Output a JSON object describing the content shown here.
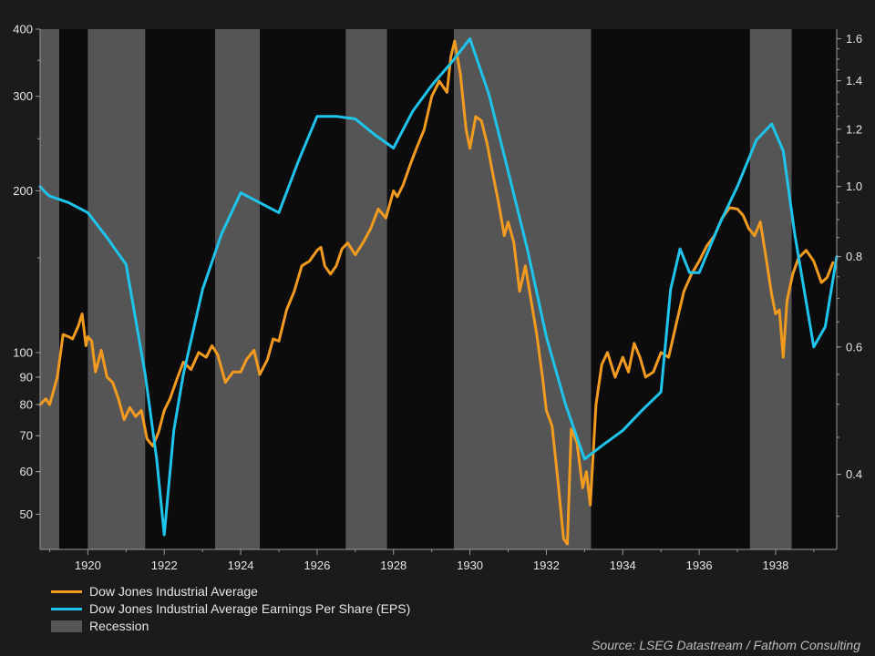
{
  "colors": {
    "background": "#1b1b1b",
    "plot_background": "#0c0c0c",
    "recession": "#555555",
    "djia": "#f39b1e",
    "eps": "#1ec4ec",
    "axis": "#9a9a9a",
    "text": "#e6e6e6"
  },
  "legend": {
    "djia": "Dow Jones Industrial Average",
    "eps": "Dow Jones Industrial Average Earnings Per Share (EPS)",
    "recession": "Recession"
  },
  "source": "Source: LSEG Datastream / Fathom Consulting",
  "chart_data": {
    "type": "line",
    "title": "",
    "xlabel": "",
    "ylabel": "",
    "xlim": [
      1918.75,
      1939.6
    ],
    "x_ticks": [
      1920,
      1922,
      1924,
      1926,
      1928,
      1930,
      1932,
      1934,
      1936,
      1938
    ],
    "y_left": {
      "scale": "log",
      "lim": [
        43,
        400
      ],
      "ticks": [
        50,
        60,
        70,
        80,
        90,
        100,
        200,
        300,
        400
      ],
      "tick_labels": [
        "50",
        "60",
        "70",
        "80",
        "90",
        "100",
        "200",
        "300",
        "400"
      ]
    },
    "y_right": {
      "scale": "log",
      "lim": [
        0.315,
        1.65
      ],
      "ticks": [
        0.4,
        0.6,
        0.8,
        1.0,
        1.2,
        1.4,
        1.6
      ],
      "tick_labels": [
        "0.4",
        "0.6",
        "0.8",
        "1.0",
        "1.2",
        "1.4",
        "1.6"
      ]
    },
    "grid": false,
    "legend_position": "bottom-left",
    "recessions": [
      [
        1918.75,
        1919.25
      ],
      [
        1920.0,
        1921.5
      ],
      [
        1923.33,
        1924.5
      ],
      [
        1926.75,
        1927.83
      ],
      [
        1929.58,
        1933.17
      ],
      [
        1937.33,
        1938.42
      ]
    ],
    "series": [
      {
        "name": "Dow Jones Industrial Average",
        "axis": "left",
        "x": [
          1918.75,
          1918.9,
          1919.0,
          1919.2,
          1919.35,
          1919.5,
          1919.6,
          1919.75,
          1919.85,
          1919.95,
          1920.0,
          1920.1,
          1920.2,
          1920.35,
          1920.5,
          1920.65,
          1920.8,
          1920.95,
          1921.1,
          1921.25,
          1921.4,
          1921.55,
          1921.7,
          1921.85,
          1922.0,
          1922.15,
          1922.35,
          1922.5,
          1922.7,
          1922.9,
          1923.1,
          1923.25,
          1923.4,
          1923.6,
          1923.8,
          1924.0,
          1924.15,
          1924.35,
          1924.5,
          1924.7,
          1924.85,
          1925.0,
          1925.2,
          1925.4,
          1925.6,
          1925.8,
          1926.0,
          1926.1,
          1926.2,
          1926.35,
          1926.5,
          1926.65,
          1926.8,
          1927.0,
          1927.2,
          1927.4,
          1927.6,
          1927.8,
          1928.0,
          1928.1,
          1928.25,
          1928.45,
          1928.6,
          1928.8,
          1929.0,
          1929.2,
          1929.4,
          1929.5,
          1929.6,
          1929.75,
          1929.9,
          1930.0,
          1930.15,
          1930.3,
          1930.45,
          1930.6,
          1930.75,
          1930.9,
          1931.0,
          1931.15,
          1931.3,
          1931.45,
          1931.6,
          1931.75,
          1931.9,
          1932.0,
          1932.15,
          1932.3,
          1932.45,
          1932.55,
          1932.65,
          1932.8,
          1932.95,
          1933.05,
          1933.15,
          1933.3,
          1933.45,
          1933.6,
          1933.8,
          1934.0,
          1934.15,
          1934.3,
          1934.45,
          1934.6,
          1934.8,
          1935.0,
          1935.2,
          1935.4,
          1935.6,
          1935.8,
          1936.0,
          1936.2,
          1936.4,
          1936.6,
          1936.8,
          1937.0,
          1937.15,
          1937.3,
          1937.45,
          1937.6,
          1937.75,
          1937.9,
          1938.0,
          1938.1,
          1938.2,
          1938.3,
          1938.45,
          1938.6,
          1938.8,
          1939.0,
          1939.2,
          1939.35,
          1939.5
        ],
        "values": [
          80,
          82,
          80,
          90,
          108,
          107,
          106,
          112,
          118,
          103,
          107,
          105,
          92,
          101,
          90,
          88,
          82,
          75,
          79,
          76,
          78,
          69,
          67,
          71,
          78,
          82,
          90,
          96,
          93,
          100,
          98,
          103,
          99,
          88,
          92,
          92,
          97,
          101,
          91,
          97,
          106,
          105,
          120,
          130,
          145,
          148,
          155,
          157,
          145,
          140,
          145,
          156,
          160,
          152,
          160,
          170,
          185,
          178,
          200,
          195,
          205,
          225,
          240,
          260,
          300,
          320,
          305,
          355,
          380,
          330,
          260,
          240,
          275,
          270,
          245,
          215,
          190,
          165,
          175,
          160,
          130,
          145,
          125,
          108,
          90,
          78,
          73,
          58,
          45,
          44,
          72,
          68,
          56,
          60,
          52,
          80,
          95,
          100,
          90,
          98,
          92,
          104,
          98,
          90,
          92,
          100,
          98,
          113,
          130,
          140,
          148,
          158,
          165,
          178,
          186,
          185,
          180,
          170,
          165,
          175,
          150,
          128,
          118,
          120,
          98,
          125,
          140,
          150,
          155,
          148,
          135,
          138,
          147
        ]
      },
      {
        "name": "Dow Jones Industrial Average Earnings Per Share (EPS)",
        "axis": "right",
        "x": [
          1918.75,
          1918.9,
          1919.0,
          1919.5,
          1920.0,
          1920.5,
          1921.0,
          1921.5,
          1921.8,
          1922.0,
          1922.25,
          1922.5,
          1923.0,
          1923.5,
          1924.0,
          1924.5,
          1925.0,
          1925.5,
          1926.0,
          1926.5,
          1927.0,
          1927.5,
          1928.0,
          1928.5,
          1929.0,
          1929.5,
          1930.0,
          1930.5,
          1931.0,
          1931.5,
          1932.0,
          1932.5,
          1933.0,
          1933.5,
          1934.0,
          1934.5,
          1935.0,
          1935.25,
          1935.5,
          1935.75,
          1936.0,
          1936.5,
          1937.0,
          1937.5,
          1937.9,
          1938.2,
          1938.5,
          1939.0,
          1939.3,
          1939.6
        ],
        "values": [
          1.0,
          0.98,
          0.97,
          0.95,
          0.92,
          0.85,
          0.78,
          0.55,
          0.42,
          0.33,
          0.46,
          0.55,
          0.72,
          0.86,
          0.98,
          0.95,
          0.92,
          1.08,
          1.25,
          1.25,
          1.24,
          1.18,
          1.13,
          1.27,
          1.38,
          1.48,
          1.6,
          1.34,
          1.05,
          0.82,
          0.62,
          0.5,
          0.42,
          0.44,
          0.46,
          0.49,
          0.52,
          0.72,
          0.82,
          0.76,
          0.76,
          0.88,
          1.0,
          1.16,
          1.22,
          1.12,
          0.86,
          0.6,
          0.64,
          0.8
        ]
      }
    ]
  }
}
